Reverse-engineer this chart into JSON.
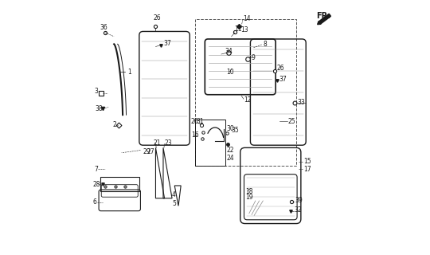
{
  "bg_color": "#ffffff",
  "line_color": "#1a1a1a"
}
